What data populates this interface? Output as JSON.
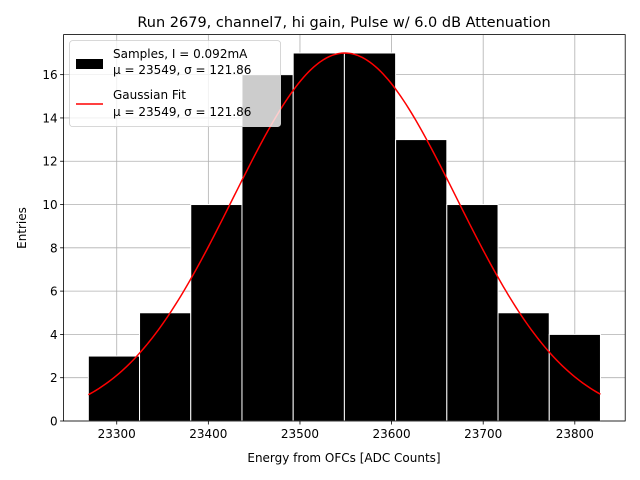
{
  "chart_data": {
    "type": "bar",
    "title": "Run 2679, channel7, hi gain, Pulse w/ 6.0 dB Attenuation",
    "xlabel": "Energy from OFCs [ADC Counts]",
    "ylabel": "Entries",
    "xlim": [
      23242,
      23855
    ],
    "ylim": [
      0,
      17.85
    ],
    "xticks": [
      23300,
      23400,
      23500,
      23600,
      23700,
      23800
    ],
    "yticks": [
      0,
      2,
      4,
      6,
      8,
      10,
      12,
      14,
      16
    ],
    "grid": true,
    "legend_position": "upper-left",
    "histogram": {
      "name": "Samples, I = 0.092mA",
      "name_line2": "μ = 23549, σ = 121.86",
      "color": "#000000",
      "edge_color": "#ffffff",
      "bin_edges": [
        23269,
        23324.9,
        23380.8,
        23436.7,
        23492.6,
        23548.5,
        23604.4,
        23660.3,
        23716.2,
        23772.1,
        23828
      ],
      "counts": [
        3,
        5,
        10,
        16,
        17,
        17,
        13,
        10,
        5,
        4
      ]
    },
    "fit": {
      "name": "Gaussian Fit",
      "name_line2": "μ = 23549, σ = 121.86",
      "color": "#ff0000",
      "amplitude": 17.0,
      "mu": 23549,
      "sigma": 121.86,
      "x_range": [
        23269,
        23828
      ]
    }
  }
}
